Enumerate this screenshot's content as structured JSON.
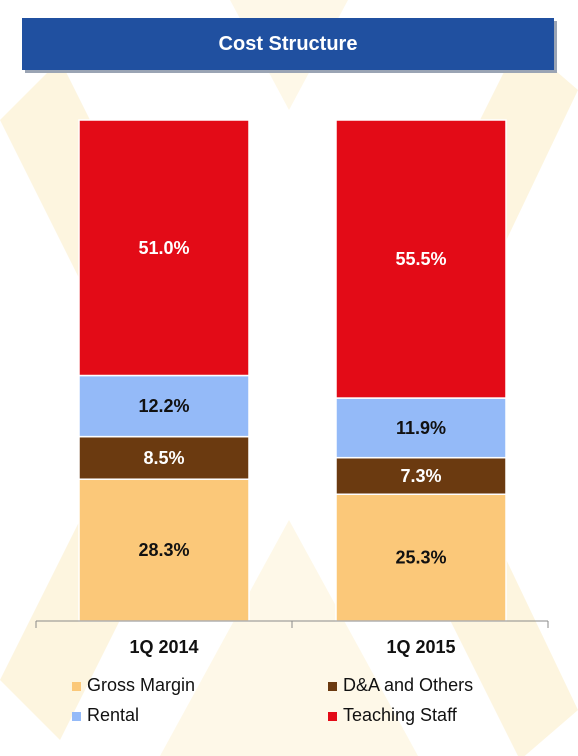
{
  "title": "Cost Structure",
  "colors": {
    "title_bg": "#2050a0",
    "gross_margin": "#fbc879",
    "da_others": "#6b3a10",
    "rental": "#94baf8",
    "teaching_staff": "#e30b17"
  },
  "chart_data": {
    "type": "bar",
    "stacked": true,
    "title": "Cost Structure",
    "categories": [
      "1Q 2014",
      "1Q 2015"
    ],
    "series": [
      {
        "name": "Gross Margin",
        "values": [
          28.3,
          25.3
        ],
        "labels": [
          "28.3%",
          "25.3%"
        ],
        "color": "#fbc879",
        "label_color": "#111111"
      },
      {
        "name": "D&A and Others",
        "values": [
          8.5,
          7.3
        ],
        "labels": [
          "8.5%",
          "7.3%"
        ],
        "color": "#6b3a10",
        "label_color": "#ffffff"
      },
      {
        "name": "Rental",
        "values": [
          12.2,
          11.9
        ],
        "labels": [
          "12.2%",
          "11.9%"
        ],
        "color": "#94baf8",
        "label_color": "#111111"
      },
      {
        "name": "Teaching Staff",
        "values": [
          51.0,
          55.5
        ],
        "labels": [
          "51.0%",
          "55.5%"
        ],
        "color": "#e30b17",
        "label_color": "#ffffff"
      }
    ],
    "ylim": [
      0,
      100
    ],
    "grid": false,
    "legend_position": "bottom"
  },
  "legend": [
    {
      "label": "Gross Margin",
      "color": "#fbc879"
    },
    {
      "label": "D&A and Others",
      "color": "#6b3a10"
    },
    {
      "label": "Rental",
      "color": "#94baf8"
    },
    {
      "label": "Teaching Staff",
      "color": "#e30b17"
    }
  ]
}
